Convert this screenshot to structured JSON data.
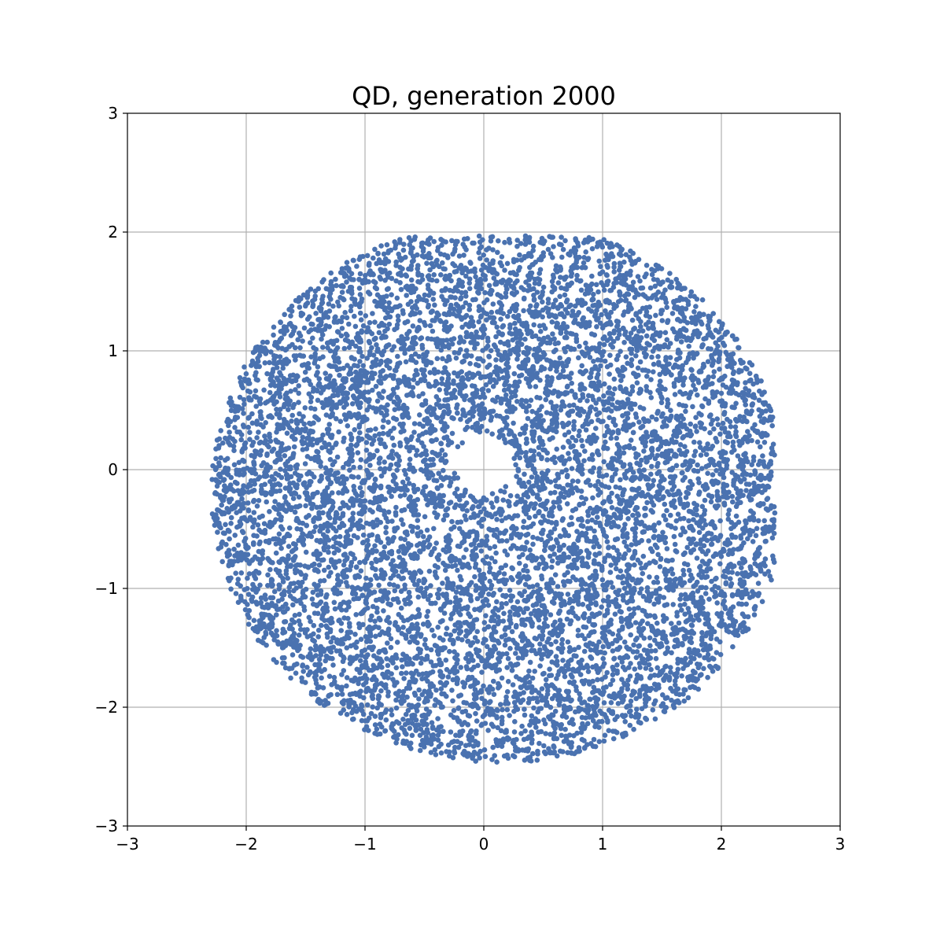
{
  "chart_data": {
    "type": "scatter",
    "title": "QD, generation 2000",
    "xlabel": "",
    "ylabel": "",
    "xlim": [
      -3,
      3
    ],
    "ylim": [
      -3,
      3
    ],
    "grid": true,
    "legend": "none",
    "xticks": [
      -3,
      -2,
      -1,
      0,
      1,
      2,
      3
    ],
    "yticks": [
      -3,
      -2,
      -1,
      0,
      1,
      2,
      3
    ],
    "xtick_labels": [
      "−3",
      "−2",
      "−1",
      "0",
      "1",
      "2",
      "3"
    ],
    "ytick_labels": [
      "−3",
      "−2",
      "−1",
      "0",
      "1",
      "2",
      "3"
    ],
    "series": [
      {
        "point_color": "#4a72b0",
        "point_count_approx": 9000,
        "distribution": {
          "shape": "filled disk with small central hole",
          "center": [
            0.05,
            -0.3
          ],
          "outer_radius": 2.35,
          "inner_hole_radius": 0.25,
          "hole_center": [
            0.0,
            0.05
          ],
          "x_range": [
            -2.35,
            2.45
          ],
          "y_range": [
            -2.65,
            1.97
          ]
        }
      }
    ]
  }
}
